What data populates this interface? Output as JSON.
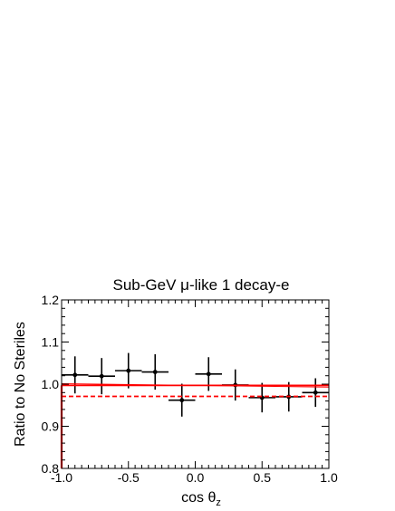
{
  "chart_data": {
    "type": "scatter",
    "title": "Sub-GeV μ-like 1 decay-e",
    "xlabel": "cos θ",
    "xlabel_subscript": "z",
    "ylabel": "Ratio to No Steriles",
    "xlim": [
      -1.0,
      1.0
    ],
    "ylim": [
      0.8,
      1.2
    ],
    "x_ticks": [
      -1.0,
      -0.5,
      0.0,
      0.5,
      1.0
    ],
    "x_tick_labels": [
      "-1.0",
      "-0.5",
      "0.0",
      "0.5",
      "1.0"
    ],
    "y_ticks": [
      0.8,
      0.9,
      1.0,
      1.1,
      1.2
    ],
    "y_tick_labels": [
      "0.8",
      "0.9",
      "1.0",
      "1.1",
      "1.2"
    ],
    "grid": false,
    "series": [
      {
        "style": "points-with-errorbars",
        "color": "#000000",
        "x": [
          -0.9,
          -0.7,
          -0.5,
          -0.3,
          -0.1,
          0.1,
          0.3,
          0.5,
          0.7,
          0.9
        ],
        "x_halfwidth": 0.1,
        "y": [
          1.022,
          1.019,
          1.032,
          1.029,
          0.962,
          1.024,
          0.998,
          0.968,
          0.97,
          0.98
        ],
        "y_err": [
          0.044,
          0.043,
          0.042,
          0.042,
          0.039,
          0.04,
          0.037,
          0.035,
          0.035,
          0.034
        ]
      },
      {
        "style": "solid-line",
        "color": "#ff0000",
        "x": [
          -1.0,
          1.0
        ],
        "y": [
          0.997,
          0.997
        ]
      },
      {
        "style": "thin-line",
        "color": "#ff0000",
        "x": [
          -1.0,
          1.0
        ],
        "y": [
          1.001,
          0.993
        ]
      },
      {
        "style": "dashed-line",
        "color": "#ff0000",
        "x": [
          -1.0,
          1.0
        ],
        "y": [
          0.971,
          0.971
        ]
      },
      {
        "style": "vertical-line",
        "color": "#ff0000",
        "x": [
          -1.0,
          -1.0
        ],
        "y": [
          0.8,
          0.997
        ]
      }
    ]
  }
}
